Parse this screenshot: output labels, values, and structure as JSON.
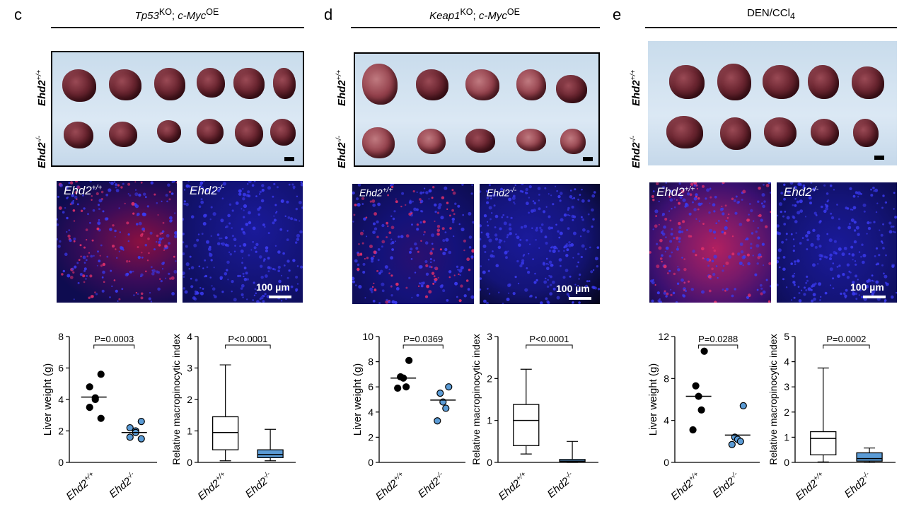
{
  "panels": [
    {
      "letter": "c",
      "title_main": "Tp53",
      "title_sup1": "KO",
      "title_sep": "; ",
      "title_main2": "c-Myc",
      "title_sup2": "OE",
      "row_label_wt": "Ehd2",
      "row_label_wt_sup": "+/+",
      "row_label_ko": "Ehd2",
      "row_label_ko_sup": "-/-",
      "micro_wt": "Ehd2",
      "micro_wt_sup": "+/+",
      "micro_ko": "Ehd2",
      "micro_ko_sup": "-/-",
      "scale_label": "100 µm"
    },
    {
      "letter": "d",
      "title_main": "Keap1",
      "title_sup1": "KO",
      "title_sep": "; ",
      "title_main2": "c-Myc",
      "title_sup2": "OE",
      "row_label_wt": "Ehd2",
      "row_label_wt_sup": "+/+",
      "row_label_ko": "Ehd2",
      "row_label_ko_sup": "-/-",
      "micro_wt": "Ehd2",
      "micro_wt_sup": "+/+",
      "micro_ko": "Ehd2",
      "micro_ko_sup": "-/-",
      "scale_label": "100 µm"
    },
    {
      "letter": "e",
      "title_main": "DEN/CCl",
      "title_sub": "4",
      "row_label_wt": "Ehd2",
      "row_label_wt_sup": "+/+",
      "row_label_ko": "Ehd2",
      "row_label_ko_sup": "-/-",
      "micro_wt": "Ehd2",
      "micro_wt_sup": "+/+",
      "micro_ko": "Ehd2",
      "micro_ko_sup": "-/-",
      "scale_label": "100 µm"
    }
  ],
  "colors": {
    "ko_fill": "#5b9bd5",
    "wt_fill": "#000000",
    "micro_bg": "#0a0a3a",
    "nuclei": "#2a2ad0",
    "signal": "#d0204a"
  },
  "chart_data": [
    {
      "type": "scatter",
      "panel": "c",
      "ylabel": "Liver weight (g)",
      "ylim": [
        0,
        8
      ],
      "yticks": [
        0,
        2,
        4,
        6,
        8
      ],
      "categories": [
        "Ehd2",
        "Ehd2"
      ],
      "category_sups": [
        "+/+",
        "-/-"
      ],
      "pvalue": "P=0.0003",
      "series": [
        {
          "values": [
            5.6,
            4.8,
            4.1,
            4.0,
            3.5,
            2.8
          ],
          "mean": 4.15
        },
        {
          "values": [
            2.6,
            2.2,
            2.0,
            1.9,
            1.6,
            1.5
          ],
          "mean": 1.9
        }
      ]
    },
    {
      "type": "box",
      "panel": "c",
      "ylabel": "Relative macropinocytic index",
      "ylim": [
        0,
        4
      ],
      "yticks": [
        0,
        1,
        2,
        3,
        4
      ],
      "categories": [
        "Ehd2",
        "Ehd2"
      ],
      "category_sups": [
        "+/+",
        "-/-"
      ],
      "pvalue": "P<0.0001",
      "boxes": [
        {
          "min": 0.05,
          "q1": 0.4,
          "median": 0.95,
          "q3": 1.45,
          "max": 3.1
        },
        {
          "min": 0.05,
          "q1": 0.15,
          "median": 0.25,
          "q3": 0.4,
          "max": 1.05
        }
      ]
    },
    {
      "type": "scatter",
      "panel": "d",
      "ylabel": "Liver weight (g)",
      "ylim": [
        0,
        10
      ],
      "yticks": [
        0,
        2,
        4,
        6,
        8,
        10
      ],
      "categories": [
        "Ehd2",
        "Ehd2"
      ],
      "category_sups": [
        "+/+",
        "-/-"
      ],
      "pvalue": "P=0.0369",
      "series": [
        {
          "values": [
            8.1,
            6.8,
            6.7,
            6.0,
            5.9
          ],
          "mean": 6.7
        },
        {
          "values": [
            6.0,
            5.5,
            4.8,
            4.3,
            3.3
          ],
          "mean": 4.95
        }
      ]
    },
    {
      "type": "box",
      "panel": "d",
      "ylabel": "Relative macropinocytic index",
      "ylim": [
        0,
        3
      ],
      "yticks": [
        0,
        1,
        2,
        3
      ],
      "categories": [
        "Ehd2",
        "Ehd2"
      ],
      "category_sups": [
        "+/+",
        "-/-"
      ],
      "pvalue": "P<0.0001",
      "boxes": [
        {
          "min": 0.2,
          "q1": 0.4,
          "median": 1.0,
          "q3": 1.38,
          "max": 2.22
        },
        {
          "min": 0.0,
          "q1": 0.01,
          "median": 0.03,
          "q3": 0.07,
          "max": 0.5
        }
      ]
    },
    {
      "type": "scatter",
      "panel": "e",
      "ylabel": "Liver weight (g)",
      "ylim": [
        0,
        12
      ],
      "yticks": [
        0,
        4,
        8,
        12
      ],
      "categories": [
        "Ehd2",
        "Ehd2"
      ],
      "category_sups": [
        "+/+",
        "-/-"
      ],
      "pvalue": "P=0.0288",
      "series": [
        {
          "values": [
            10.6,
            7.3,
            6.3,
            5.0,
            3.1
          ],
          "mean": 6.3
        },
        {
          "values": [
            5.4,
            2.4,
            2.2,
            2.0,
            1.7
          ],
          "mean": 2.6
        }
      ]
    },
    {
      "type": "box",
      "panel": "e",
      "ylabel": "Relative macropinocytic index",
      "ylim": [
        0,
        5
      ],
      "yticks": [
        0,
        1,
        2,
        3,
        4,
        5
      ],
      "categories": [
        "Ehd2",
        "Ehd2"
      ],
      "category_sups": [
        "+/+",
        "-/-"
      ],
      "pvalue": "P=0.0002",
      "boxes": [
        {
          "min": 0.02,
          "q1": 0.3,
          "median": 0.95,
          "q3": 1.22,
          "max": 3.75
        },
        {
          "min": 0.0,
          "q1": 0.05,
          "median": 0.15,
          "q3": 0.38,
          "max": 0.57
        }
      ]
    }
  ]
}
